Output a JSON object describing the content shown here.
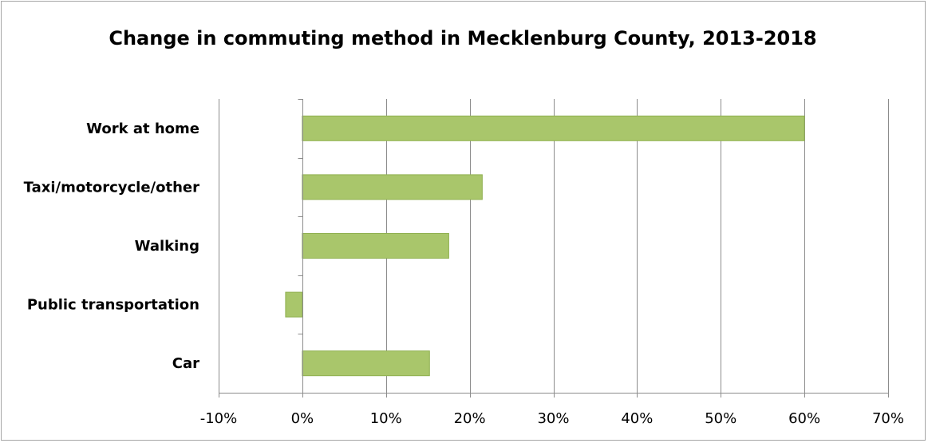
{
  "chart_data": {
    "type": "bar",
    "orientation": "horizontal",
    "title": "Change in commuting method in Mecklenburg County, 2013-2018",
    "categories": [
      "Work at home",
      "Taxi/motorcycle/other",
      "Walking",
      "Public transportation",
      "Car"
    ],
    "values": [
      60,
      21.5,
      17.5,
      -2,
      15.2
    ],
    "value_unit": "%",
    "xlim": [
      -10,
      70
    ],
    "xticks": [
      -10,
      0,
      10,
      20,
      30,
      40,
      50,
      60,
      70
    ],
    "xtick_labels": [
      "-10%",
      "0%",
      "10%",
      "20%",
      "30%",
      "40%",
      "50%",
      "60%",
      "70%"
    ],
    "xlabel": "",
    "ylabel": "",
    "grid": "vertical",
    "legend": "none",
    "colors": {
      "bar_fill": "#a9c66b",
      "bar_stroke": "#8fb04f",
      "grid": "#8c8c8c"
    }
  }
}
